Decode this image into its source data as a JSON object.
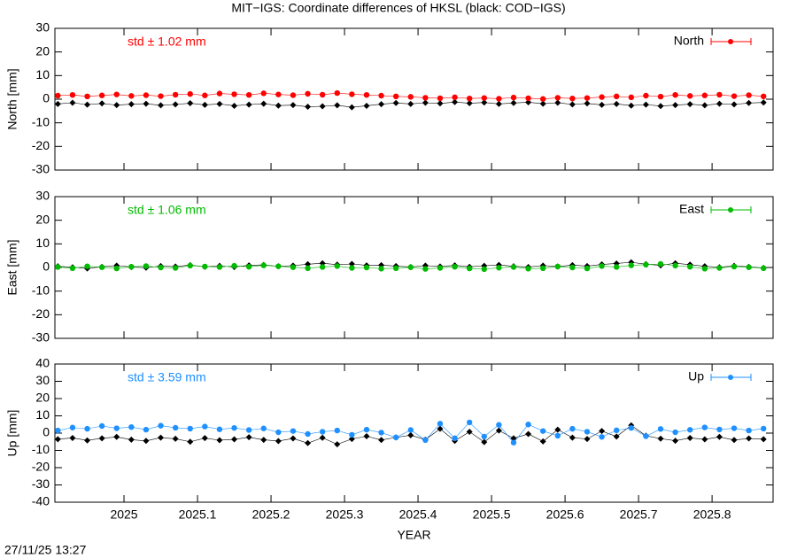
{
  "title": "MIT−IGS: Coordinate differences of HKSL (black: COD−IGS)",
  "footer": "27/11/25 13:27",
  "chart_data": [
    {
      "type": "scatter",
      "ylabel": "North [mm]",
      "annotation": "std ± 1.02 mm",
      "legend": "top right",
      "show_xtick_labels": false,
      "xlim": [
        2024.906,
        2025.883
      ],
      "xticks": [
        2025,
        2025.1,
        2025.2,
        2025.3,
        2025.4,
        2025.5,
        2025.6,
        2025.7,
        2025.8
      ],
      "ylim": [
        -30,
        30
      ],
      "yticks": [
        -30,
        -20,
        -10,
        0,
        10,
        20,
        30
      ],
      "x": [
        2024.91,
        2024.93,
        2024.95,
        2024.97,
        2024.99,
        2025.01,
        2025.03,
        2025.05,
        2025.07,
        2025.09,
        2025.11,
        2025.13,
        2025.15,
        2025.17,
        2025.19,
        2025.21,
        2025.23,
        2025.25,
        2025.27,
        2025.29,
        2025.31,
        2025.33,
        2025.35,
        2025.37,
        2025.39,
        2025.41,
        2025.43,
        2025.45,
        2025.47,
        2025.49,
        2025.51,
        2025.53,
        2025.55,
        2025.57,
        2025.59,
        2025.61,
        2025.63,
        2025.65,
        2025.67,
        2025.69,
        2025.71,
        2025.73,
        2025.75,
        2025.77,
        2025.79,
        2025.81,
        2025.83,
        2025.85,
        2025.87
      ],
      "series": [
        {
          "color": "#000000",
          "values": [
            -2.0,
            -1.5,
            -2.3,
            -1.8,
            -2.5,
            -2.1,
            -1.9,
            -2.6,
            -2.2,
            -1.7,
            -2.4,
            -2.0,
            -2.8,
            -2.3,
            -1.9,
            -2.7,
            -2.5,
            -3.2,
            -3.0,
            -2.6,
            -3.4,
            -2.8,
            -2.1,
            -1.6,
            -2.0,
            -1.5,
            -1.8,
            -1.2,
            -1.7,
            -1.4,
            -2.0,
            -1.6,
            -1.3,
            -1.9,
            -1.5,
            -2.2,
            -1.8,
            -2.4,
            -2.0,
            -2.7,
            -2.3,
            -2.9,
            -2.5,
            -2.1,
            -2.6,
            -1.9,
            -2.2,
            -1.6,
            -1.4
          ]
        },
        {
          "name": "North",
          "color": "#ff0000",
          "values": [
            1.5,
            1.8,
            1.2,
            1.6,
            2.0,
            1.4,
            1.7,
            1.3,
            1.9,
            2.2,
            1.6,
            2.4,
            2.1,
            1.8,
            2.5,
            2.0,
            1.7,
            2.3,
            1.9,
            2.6,
            2.1,
            1.8,
            1.5,
            1.2,
            1.0,
            0.6,
            0.4,
            0.8,
            0.3,
            0.5,
            0.2,
            0.7,
            0.4,
            0.1,
            0.6,
            0.3,
            0.5,
            0.9,
            1.2,
            0.8,
            1.5,
            1.1,
            1.8,
            1.4,
            1.6,
            1.9,
            1.3,
            1.7,
            1.2
          ]
        }
      ]
    },
    {
      "type": "scatter",
      "ylabel": "East [mm]",
      "annotation": "std ± 1.06 mm",
      "legend": "top right",
      "show_xtick_labels": false,
      "xlim": [
        2024.906,
        2025.883
      ],
      "xticks": [
        2025,
        2025.1,
        2025.2,
        2025.3,
        2025.4,
        2025.5,
        2025.6,
        2025.7,
        2025.8
      ],
      "ylim": [
        -30,
        30
      ],
      "yticks": [
        -30,
        -20,
        -10,
        0,
        10,
        20,
        30
      ],
      "x": [
        2024.91,
        2024.93,
        2024.95,
        2024.97,
        2024.99,
        2025.01,
        2025.03,
        2025.05,
        2025.07,
        2025.09,
        2025.11,
        2025.13,
        2025.15,
        2025.17,
        2025.19,
        2025.21,
        2025.23,
        2025.25,
        2025.27,
        2025.29,
        2025.31,
        2025.33,
        2025.35,
        2025.37,
        2025.39,
        2025.41,
        2025.43,
        2025.45,
        2025.47,
        2025.49,
        2025.51,
        2025.53,
        2025.55,
        2025.57,
        2025.59,
        2025.61,
        2025.63,
        2025.65,
        2025.67,
        2025.69,
        2025.71,
        2025.73,
        2025.75,
        2025.77,
        2025.79,
        2025.81,
        2025.83,
        2025.85,
        2025.87
      ],
      "series": [
        {
          "color": "#000000",
          "values": [
            0.5,
            0.1,
            -0.4,
            0.3,
            0.8,
            0.2,
            -0.1,
            0.6,
            0.4,
            1.0,
            0.3,
            0.7,
            0.2,
            0.9,
            1.1,
            0.5,
            0.8,
            1.4,
            1.8,
            1.2,
            1.5,
            0.9,
            1.0,
            0.6,
            0.2,
            0.8,
            0.4,
            0.9,
            0.3,
            0.7,
            1.1,
            0.5,
            0.2,
            0.8,
            0.4,
            1.0,
            0.6,
            1.3,
            1.7,
            2.2,
            1.4,
            0.9,
            1.8,
            1.2,
            0.5,
            0.1,
            0.7,
            0.3,
            -0.2
          ]
        },
        {
          "name": "East",
          "color": "#00bb00",
          "values": [
            0.2,
            -0.3,
            0.5,
            0.1,
            -0.4,
            0.3,
            0.6,
            0.0,
            -0.2,
            0.8,
            0.4,
            0.2,
            0.7,
            0.3,
            0.9,
            0.5,
            0.1,
            -0.3,
            0.2,
            0.6,
            -0.2,
            0.0,
            -0.5,
            -0.3,
            0.1,
            -0.6,
            -0.2,
            0.3,
            -0.4,
            -0.7,
            -0.1,
            0.2,
            -0.5,
            -0.3,
            0.4,
            0.0,
            -0.4,
            0.6,
            0.2,
            0.9,
            1.2,
            1.5,
            0.8,
            0.3,
            -0.5,
            -0.2,
            0.4,
            0.1,
            -0.3
          ]
        }
      ]
    },
    {
      "type": "scatter",
      "ylabel": "Up [mm]",
      "xlabel": "YEAR",
      "annotation": "std ± 3.59 mm",
      "legend": "top right",
      "show_xtick_labels": true,
      "xlim": [
        2024.906,
        2025.883
      ],
      "xticks": [
        2025,
        2025.1,
        2025.2,
        2025.3,
        2025.4,
        2025.5,
        2025.6,
        2025.7,
        2025.8
      ],
      "ylim": [
        -40,
        40
      ],
      "yticks": [
        -40,
        -30,
        -20,
        -10,
        0,
        10,
        20,
        30,
        40
      ],
      "x": [
        2024.91,
        2024.93,
        2024.95,
        2024.97,
        2024.99,
        2025.01,
        2025.03,
        2025.05,
        2025.07,
        2025.09,
        2025.11,
        2025.13,
        2025.15,
        2025.17,
        2025.19,
        2025.21,
        2025.23,
        2025.25,
        2025.27,
        2025.29,
        2025.31,
        2025.33,
        2025.35,
        2025.37,
        2025.39,
        2025.41,
        2025.43,
        2025.45,
        2025.47,
        2025.49,
        2025.51,
        2025.53,
        2025.55,
        2025.57,
        2025.59,
        2025.61,
        2025.63,
        2025.65,
        2025.67,
        2025.69,
        2025.71,
        2025.73,
        2025.75,
        2025.77,
        2025.79,
        2025.81,
        2025.83,
        2025.85,
        2025.87
      ],
      "series": [
        {
          "color": "#000000",
          "values": [
            -3.5,
            -2.8,
            -4.2,
            -3.0,
            -2.2,
            -3.8,
            -4.5,
            -2.6,
            -3.3,
            -5.0,
            -2.9,
            -4.1,
            -3.6,
            -2.4,
            -3.9,
            -4.6,
            -3.1,
            -5.8,
            -2.7,
            -6.5,
            -3.4,
            -1.8,
            -4.0,
            -2.5,
            -1.2,
            -3.8,
            2.5,
            -4.5,
            0.8,
            -5.2,
            1.5,
            -3.0,
            -0.5,
            -4.8,
            2.0,
            -2.6,
            -3.4,
            1.2,
            -2.0,
            4.5,
            -1.5,
            -3.2,
            -4.4,
            -2.8,
            -3.6,
            -2.2,
            -4.0,
            -3.1,
            -3.5
          ]
        },
        {
          "name": "Up",
          "color": "#1e90ff",
          "values": [
            1.5,
            3.2,
            2.5,
            4.1,
            2.8,
            3.5,
            2.0,
            4.3,
            3.1,
            2.6,
            3.8,
            2.2,
            3.0,
            1.8,
            2.7,
            0.5,
            1.2,
            -0.5,
            0.8,
            1.5,
            -1.0,
            2.0,
            0.3,
            -2.5,
            1.8,
            -4.0,
            5.5,
            -3.0,
            6.2,
            -2.0,
            4.8,
            -5.5,
            5.0,
            1.2,
            -1.5,
            2.5,
            0.8,
            -2.2,
            1.6,
            3.0,
            -1.8,
            2.4,
            0.5,
            1.9,
            3.3,
            2.1,
            2.8,
            1.5,
            2.6
          ]
        }
      ]
    }
  ]
}
